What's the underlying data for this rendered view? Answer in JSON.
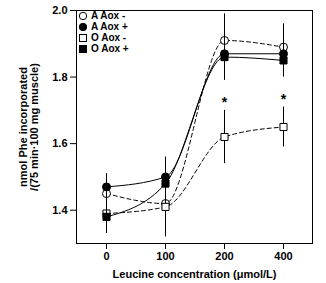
{
  "chart_data": {
    "type": "line",
    "x_label": "Leucine concentration (μmol/L)",
    "y_label": "nmol Phe incorporated\n/(75 min·100 mg muscle)",
    "categories": [
      "0",
      "100",
      "200",
      "400"
    ],
    "ylim": [
      1.3,
      2.0
    ],
    "yticks": [
      1.4,
      1.6,
      1.8,
      {
        "value": 2.0,
        "label": "2.0"
      }
    ],
    "legend": "top-left",
    "series": [
      {
        "name": "A Aox -",
        "color": "#000000",
        "marker": "open-circle",
        "line_style": "dashed",
        "values": [
          1.45,
          1.42,
          1.91,
          1.89
        ],
        "errors": [
          0.05,
          0.08,
          0.08,
          0.07
        ]
      },
      {
        "name": "A Aox +",
        "color": "#000000",
        "marker": "filled-circle",
        "line_style": "solid",
        "values": [
          1.47,
          1.5,
          1.87,
          1.87
        ],
        "errors": [
          0.04,
          0.06,
          0.07,
          0.05
        ]
      },
      {
        "name": "O Aox -",
        "color": "#000000",
        "marker": "open-square",
        "line_style": "dashed",
        "values": [
          1.39,
          1.41,
          1.62,
          1.65
        ],
        "errors": [
          0.06,
          0.09,
          0.08,
          0.06
        ]
      },
      {
        "name": "O Aox +",
        "color": "#000000",
        "marker": "filled-square",
        "line_style": "solid",
        "values": [
          1.38,
          1.48,
          1.86,
          1.85
        ],
        "errors": [
          0.05,
          0.06,
          0.07,
          0.05
        ]
      }
    ],
    "annotations": [
      {
        "series": "O Aox -",
        "x": "200",
        "text": "*"
      },
      {
        "series": "O Aox -",
        "x": "400",
        "text": "*"
      }
    ]
  }
}
